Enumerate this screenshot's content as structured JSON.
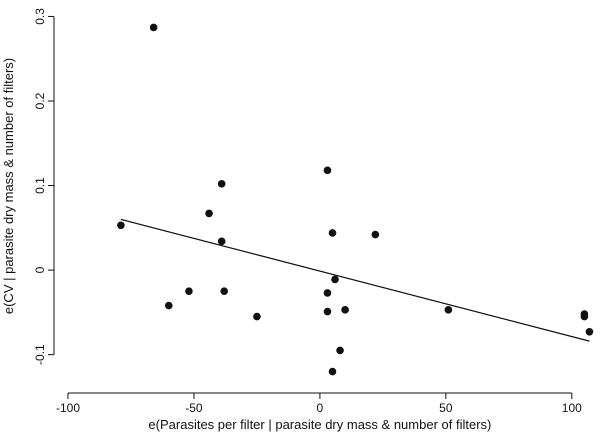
{
  "chart_data": {
    "type": "scatter",
    "title": "",
    "xlabel": "e(Parasites per filter | parasite dry mass & number of filters)",
    "ylabel": "e(CV | parasite dry mass & number of filters)",
    "xlim": [
      -100,
      110
    ],
    "ylim": [
      -0.13,
      0.31
    ],
    "xticks": [
      -100,
      -50,
      0,
      50,
      100
    ],
    "xtick_labels": [
      "-100",
      "-50",
      "0",
      "50",
      "100"
    ],
    "yticks": [
      -0.1,
      0,
      0.1,
      0.2,
      0.3
    ],
    "ytick_labels": [
      "-0.1",
      "0",
      "0.1",
      "0.2",
      "0.3"
    ],
    "grid": false,
    "legend": "none",
    "series": [
      {
        "points": [
          [
            -79,
            0.053
          ],
          [
            -66,
            0.287
          ],
          [
            -60,
            -0.042
          ],
          [
            -52,
            -0.025
          ],
          [
            -44,
            0.067
          ],
          [
            -39,
            0.034
          ],
          [
            -39,
            0.102
          ],
          [
            -38,
            -0.025
          ],
          [
            -25,
            -0.055
          ],
          [
            3,
            0.118
          ],
          [
            3,
            -0.027
          ],
          [
            3,
            -0.049
          ],
          [
            5,
            0.044
          ],
          [
            5,
            -0.12
          ],
          [
            6,
            -0.011
          ],
          [
            8,
            -0.095
          ],
          [
            10,
            -0.047
          ],
          [
            22,
            0.042
          ],
          [
            51,
            -0.047
          ],
          [
            105,
            -0.052
          ],
          [
            105,
            -0.055
          ],
          [
            107,
            -0.073
          ]
        ]
      }
    ],
    "fit_line": {
      "x": [
        -79,
        107
      ],
      "y": [
        0.06,
        -0.084
      ]
    }
  }
}
